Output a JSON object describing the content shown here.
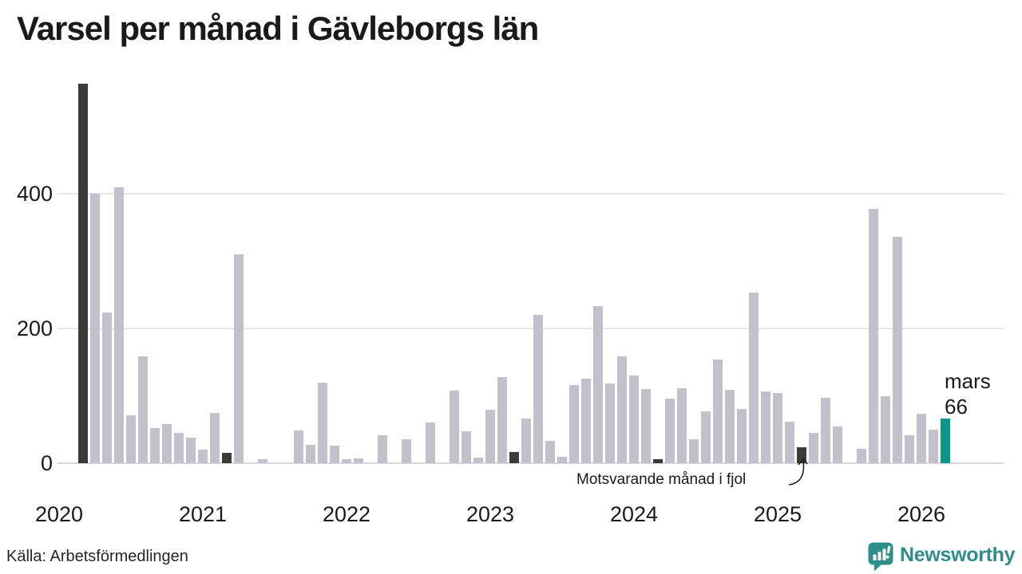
{
  "title": "Varsel per månad i Gävleborgs län",
  "source": "Källa: Arbetsförmedlingen",
  "brand": {
    "name": "Newsworthy",
    "color": "#2e8c8c"
  },
  "annotation": {
    "text": "Motsvarande månad i fjol"
  },
  "highlight": {
    "month_label": "mars",
    "value_label": "66"
  },
  "chart_data": {
    "type": "bar",
    "title": "Varsel per månad i Gävleborgs län",
    "xlabel": "",
    "ylabel": "",
    "y_ticks": [
      0,
      200,
      400
    ],
    "ylim": [
      0,
      580
    ],
    "grid": "horizontal",
    "x_year_ticks": [
      "2020",
      "2021",
      "2022",
      "2023",
      "2024",
      "2025",
      "2026"
    ],
    "x_start": "2020-03",
    "x_end": "2026-03",
    "months": [
      "2020-03",
      "2020-04",
      "2020-05",
      "2020-06",
      "2020-07",
      "2020-08",
      "2020-09",
      "2020-10",
      "2020-11",
      "2020-12",
      "2021-01",
      "2021-02",
      "2021-03",
      "2021-04",
      "2021-05",
      "2021-06",
      "2021-07",
      "2021-08",
      "2021-09",
      "2021-10",
      "2021-11",
      "2021-12",
      "2022-01",
      "2022-02",
      "2022-03",
      "2022-04",
      "2022-05",
      "2022-06",
      "2022-07",
      "2022-08",
      "2022-09",
      "2022-10",
      "2022-11",
      "2022-12",
      "2023-01",
      "2023-02",
      "2023-03",
      "2023-04",
      "2023-05",
      "2023-06",
      "2023-07",
      "2023-08",
      "2023-09",
      "2023-10",
      "2023-11",
      "2023-12",
      "2024-01",
      "2024-02",
      "2024-03",
      "2024-04",
      "2024-05",
      "2024-06",
      "2024-07",
      "2024-08",
      "2024-09",
      "2024-10",
      "2024-11",
      "2024-12",
      "2025-01",
      "2025-02",
      "2025-03",
      "2025-04",
      "2025-05",
      "2025-06",
      "2025-07",
      "2025-08",
      "2025-09",
      "2025-10",
      "2025-11",
      "2025-12",
      "2026-01",
      "2026-02",
      "2026-03"
    ],
    "values": [
      563,
      400,
      224,
      410,
      71,
      159,
      52,
      58,
      45,
      38,
      20,
      75,
      15,
      310,
      0,
      6,
      0,
      0,
      48,
      27,
      120,
      26,
      6,
      7,
      0,
      42,
      0,
      36,
      0,
      60,
      0,
      108,
      47,
      8,
      79,
      128,
      17,
      66,
      220,
      33,
      10,
      116,
      126,
      233,
      118,
      159,
      130,
      110,
      6,
      96,
      111,
      36,
      77,
      154,
      109,
      80,
      253,
      107,
      104,
      62,
      24,
      45,
      97,
      54,
      0,
      21,
      378,
      100,
      336,
      41,
      73,
      50,
      66
    ],
    "colors": [
      "dark",
      "light",
      "light",
      "light",
      "light",
      "light",
      "light",
      "light",
      "light",
      "light",
      "light",
      "light",
      "dark",
      "light",
      "light",
      "light",
      "light",
      "light",
      "light",
      "light",
      "light",
      "light",
      "light",
      "light",
      "dark",
      "light",
      "light",
      "light",
      "light",
      "light",
      "light",
      "light",
      "light",
      "light",
      "light",
      "light",
      "dark",
      "light",
      "light",
      "light",
      "light",
      "light",
      "light",
      "light",
      "light",
      "light",
      "light",
      "light",
      "dark",
      "light",
      "light",
      "light",
      "light",
      "light",
      "light",
      "light",
      "light",
      "light",
      "light",
      "light",
      "dark",
      "light",
      "light",
      "light",
      "light",
      "light",
      "light",
      "light",
      "light",
      "light",
      "light",
      "light",
      "teal"
    ],
    "palette": {
      "light": "#c2c0cb",
      "dark": "#3b3b3b",
      "teal": "#0f9488"
    },
    "series_note_dark": "Motsvarande månad i fjol",
    "highlight_point": {
      "month": "2026-03",
      "label": "mars",
      "value": 66
    }
  }
}
